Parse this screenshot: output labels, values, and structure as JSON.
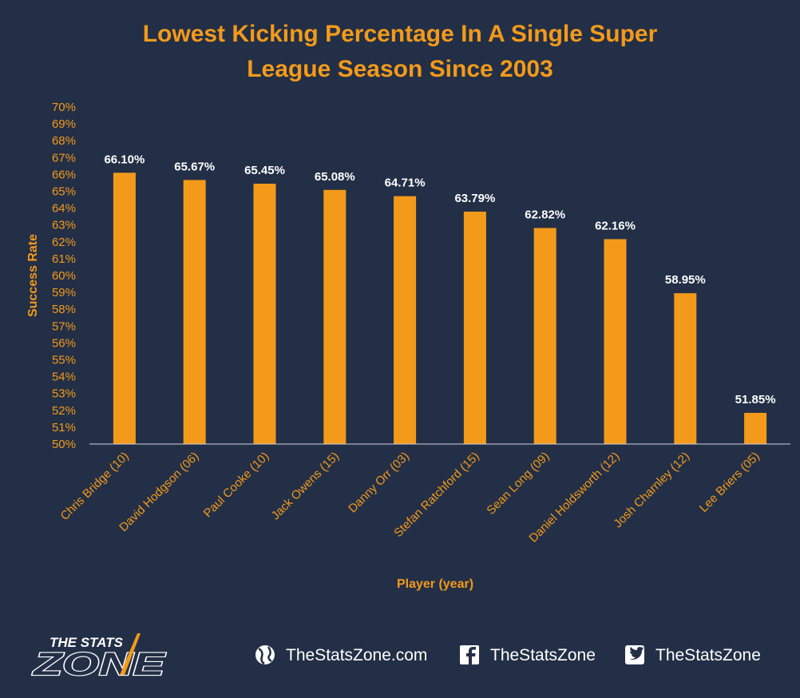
{
  "chart_data": {
    "type": "bar",
    "title_line1": "Lowest Kicking Percentage In A Single Super",
    "title_line2": "League Season Since 2003",
    "xlabel": "Player (year)",
    "ylabel": "Success Rate",
    "ylim": [
      50,
      70
    ],
    "y_ticks": [
      "50%",
      "51%",
      "52%",
      "53%",
      "54%",
      "55%",
      "56%",
      "57%",
      "58%",
      "59%",
      "60%",
      "61%",
      "62%",
      "63%",
      "64%",
      "65%",
      "66%",
      "67%",
      "68%",
      "69%",
      "70%"
    ],
    "categories": [
      "Chris Bridge (10)",
      "David Hodgson (06)",
      "Paul Cooke (10)",
      "Jack Owens (15)",
      "Danny Orr (03)",
      "Stefan Ratchford (15)",
      "Sean Long (09)",
      "Daniel Holdsworth (12)",
      "Josh Charnley (12)",
      "Lee Briers (05)"
    ],
    "values": [
      66.1,
      65.67,
      65.45,
      65.08,
      64.71,
      63.79,
      62.82,
      62.16,
      58.95,
      51.85
    ],
    "data_labels": [
      "66.10%",
      "65.67%",
      "65.45%",
      "65.08%",
      "64.71%",
      "63.79%",
      "62.82%",
      "62.16%",
      "58.95%",
      "51.85%"
    ],
    "grid": false,
    "legend": "none",
    "bar_color": "#f39a1a",
    "text_color": "#f39a1a",
    "background": "#232f46"
  },
  "footer": {
    "logo_top": "THE STATS",
    "logo_bottom": "ZONE",
    "website": "TheStatsZone.com",
    "facebook": "TheStatsZone",
    "twitter": "TheStatsZone",
    "icons": [
      "globe-icon",
      "facebook-icon",
      "twitter-icon"
    ]
  }
}
